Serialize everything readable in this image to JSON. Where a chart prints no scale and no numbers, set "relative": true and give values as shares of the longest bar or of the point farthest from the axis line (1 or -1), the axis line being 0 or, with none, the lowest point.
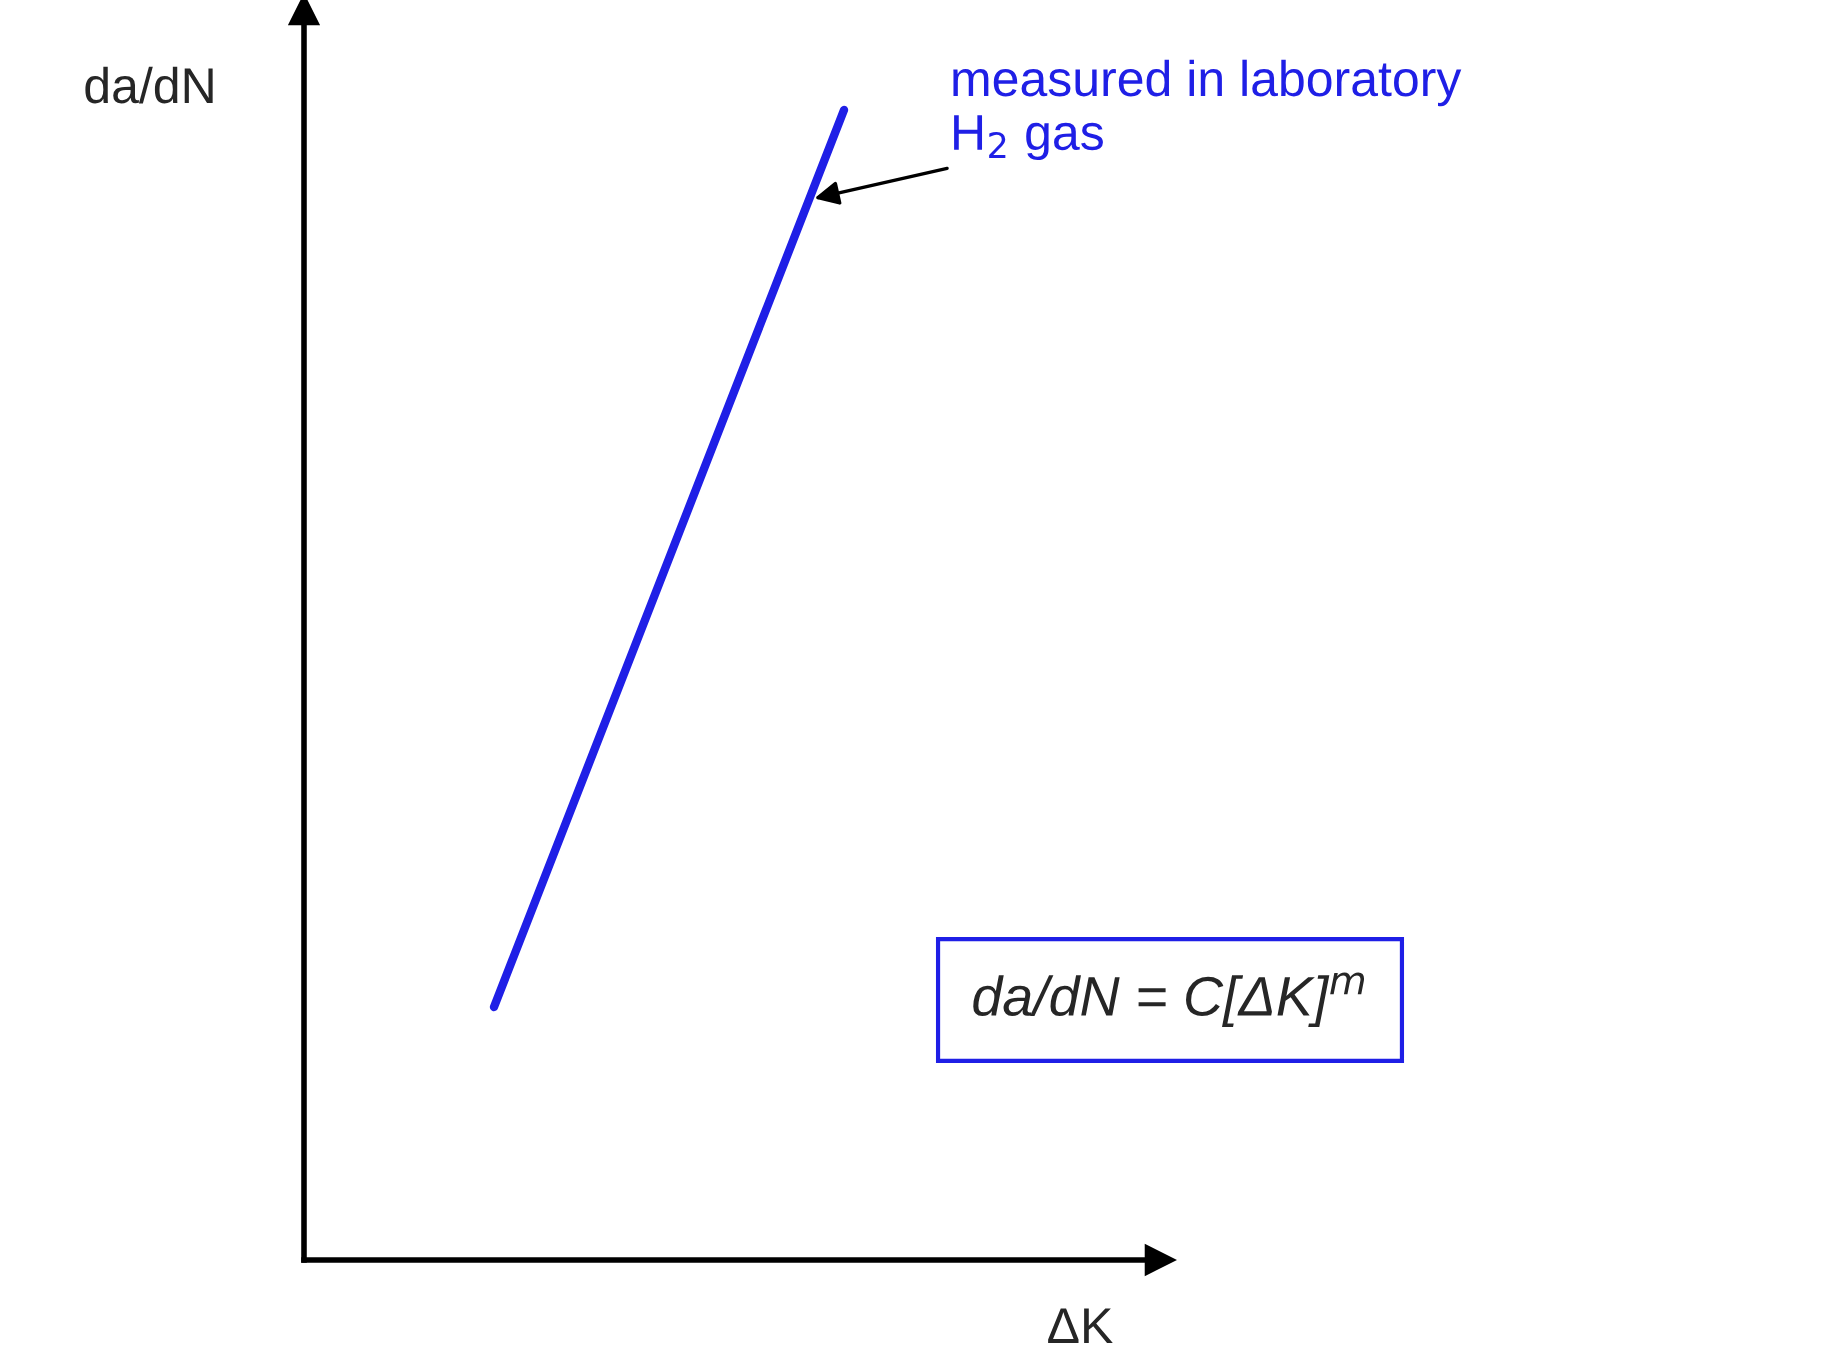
{
  "chart_data": {
    "type": "line",
    "relative": true,
    "xlabel": "ΔK",
    "ylabel": "da/dN",
    "categories": [
      null,
      null
    ],
    "series": [
      {
        "color": "#1f1fe6",
        "values": [
          0.22,
          1
        ]
      }
    ],
    "annotations": [
      "measured in laboratory\nH$_{2}$ gas",
      "da/dN = C[ΔK]$^{m}$"
    ],
    "legend": false,
    "marker": "none",
    "line_style": "solid"
  }
}
